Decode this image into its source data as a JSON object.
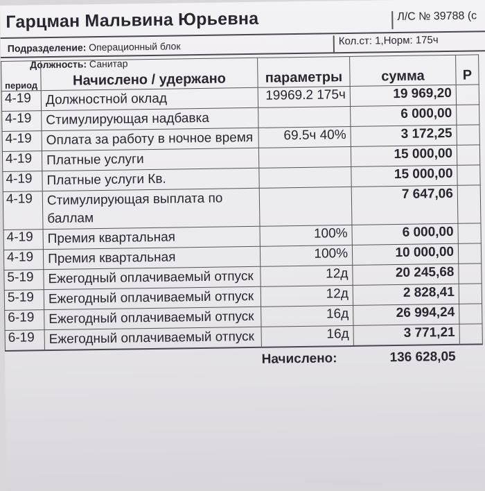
{
  "header": {
    "name": "Гарцман Мальвина Юрьевна",
    "account": "Л/С № 39788 (с",
    "department_label": "Подразделение:",
    "department": "Операционный блок",
    "rate_info": "Кол.ст: 1,Норм: 175ч",
    "position_label": "Должность:",
    "position": "Санитар"
  },
  "table": {
    "columns": [
      "период",
      "Начислено / удержано",
      "параметры",
      "сумма",
      "Р"
    ],
    "rows": [
      {
        "period": "4-19",
        "label": "Должностной оклад",
        "params": "19969.2 175ч",
        "sum": "19 969,20"
      },
      {
        "period": "4-19",
        "label": "Стимулирующая надбавка",
        "params": "",
        "sum": "6 000,00"
      },
      {
        "period": "4-19",
        "label": "Оплата за работу в ночное время",
        "params": "69.5ч 40%",
        "sum": "3 172,25"
      },
      {
        "period": "4-19",
        "label": "Платные услуги",
        "params": "",
        "sum": "15 000,00"
      },
      {
        "period": "4-19",
        "label": "Платные услуги Кв.",
        "params": "",
        "sum": "15 000,00"
      },
      {
        "period": "4-19",
        "label": "Стимулирующая выплата по баллам",
        "params": "",
        "sum": "7 647,06"
      },
      {
        "period": "4-19",
        "label": "Премия квартальная",
        "params": "100%",
        "sum": "6 000,00"
      },
      {
        "period": "4-19",
        "label": "Премия квартальная",
        "params": "100%",
        "sum": "10 000,00"
      },
      {
        "period": "5-19",
        "label": "Ежегодный оплачиваемый отпуск",
        "params": "12д",
        "sum": "20 245,68"
      },
      {
        "period": "5-19",
        "label": "Ежегодный оплачиваемый отпуск",
        "params": "12д",
        "sum": "2 828,41"
      },
      {
        "period": "6-19",
        "label": "Ежегодный оплачиваемый отпуск",
        "params": "16д",
        "sum": "26 994,24"
      },
      {
        "period": "6-19",
        "label": "Ежегодный оплачиваемый отпуск",
        "params": "16д",
        "sum": "3 771,21"
      }
    ],
    "total_label": "Начислено:",
    "total": "136 628,05"
  }
}
